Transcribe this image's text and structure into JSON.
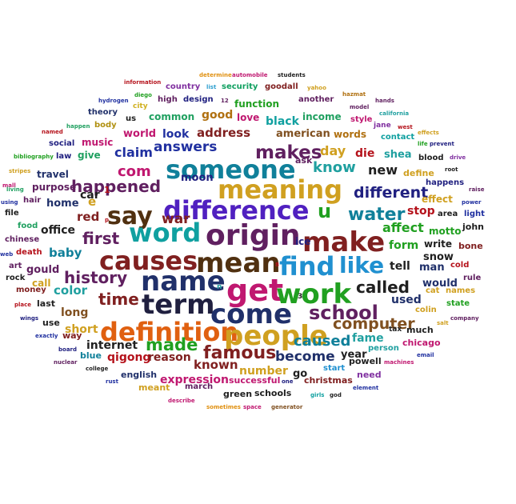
{
  "words": [
    {
      "text": "information",
      "color": "#b5121b"
    },
    {
      "text": "determine",
      "color": "#e09010"
    },
    {
      "text": "automobile",
      "color": "#c01870"
    },
    {
      "text": "students",
      "color": "#202020"
    },
    {
      "text": "diego",
      "color": "#20a020"
    },
    {
      "text": "city",
      "color": "#d0b020"
    },
    {
      "text": "country",
      "color": "#8030a0"
    },
    {
      "text": "list",
      "color": "#30a0d0"
    },
    {
      "text": "security",
      "color": "#10a060"
    },
    {
      "text": "goodall",
      "color": "#802020"
    },
    {
      "text": "yahoo",
      "color": "#d0a020"
    },
    {
      "text": "hydrogen",
      "color": "#2030a0"
    },
    {
      "text": "high",
      "color": "#602060"
    },
    {
      "text": "design",
      "color": "#202080"
    },
    {
      "text": "12",
      "color": "#602060"
    },
    {
      "text": "function",
      "color": "#20a020"
    },
    {
      "text": "another",
      "color": "#602060"
    },
    {
      "text": "hazmat",
      "color": "#b07010"
    },
    {
      "text": "hands",
      "color": "#602060"
    },
    {
      "text": "theory",
      "color": "#20306a"
    },
    {
      "text": "model",
      "color": "#602060"
    },
    {
      "text": "california",
      "color": "#20a0a0"
    },
    {
      "text": "us",
      "color": "#202020"
    },
    {
      "text": "common",
      "color": "#20a060"
    },
    {
      "text": "good",
      "color": "#b07010"
    },
    {
      "text": "love",
      "color": "#c01870"
    },
    {
      "text": "black",
      "color": "#10a0a0"
    },
    {
      "text": "income",
      "color": "#20a060"
    },
    {
      "text": "style",
      "color": "#c01870"
    },
    {
      "text": "body",
      "color": "#b09010"
    },
    {
      "text": "jane",
      "color": "#8030a0"
    },
    {
      "text": "happen",
      "color": "#20a060"
    },
    {
      "text": "west",
      "color": "#b5121b"
    },
    {
      "text": "named",
      "color": "#b5121b"
    },
    {
      "text": "world",
      "color": "#c01870"
    },
    {
      "text": "look",
      "color": "#2030a0"
    },
    {
      "text": "address",
      "color": "#802020"
    },
    {
      "text": "american",
      "color": "#805020"
    },
    {
      "text": "words",
      "color": "#b07010"
    },
    {
      "text": "music",
      "color": "#c01870"
    },
    {
      "text": "social",
      "color": "#202080"
    },
    {
      "text": "contact",
      "color": "#10a0a0"
    },
    {
      "text": "effects",
      "color": "#d0a020"
    },
    {
      "text": "life",
      "color": "#20a020"
    },
    {
      "text": "prevent",
      "color": "#202080"
    },
    {
      "text": "answers",
      "color": "#2030a0"
    },
    {
      "text": "makes",
      "color": "#602060"
    },
    {
      "text": "claim",
      "color": "#2030a0"
    },
    {
      "text": "day",
      "color": "#d0a020"
    },
    {
      "text": "die",
      "color": "#b5121b"
    },
    {
      "text": "bibliography",
      "color": "#20a020"
    },
    {
      "text": "law",
      "color": "#202080"
    },
    {
      "text": "give",
      "color": "#20a060"
    },
    {
      "text": "ask",
      "color": "#602060"
    },
    {
      "text": "shea",
      "color": "#20a0a0"
    },
    {
      "text": "blood",
      "color": "#202020"
    },
    {
      "text": "drive",
      "color": "#8030a0"
    },
    {
      "text": "someone",
      "color": "#10809a"
    },
    {
      "text": "com",
      "color": "#c01870"
    },
    {
      "text": "know",
      "color": "#20a0a0"
    },
    {
      "text": "stripes",
      "color": "#d0a020"
    },
    {
      "text": "travel",
      "color": "#20306a"
    },
    {
      "text": "new",
      "color": "#202020"
    },
    {
      "text": "define",
      "color": "#d0a020"
    },
    {
      "text": "root",
      "color": "#202020"
    },
    {
      "text": "happened",
      "color": "#602060"
    },
    {
      "text": "meaning",
      "color": "#d0a020"
    },
    {
      "text": "mall",
      "color": "#c01870"
    },
    {
      "text": "purpose",
      "color": "#602060"
    },
    {
      "text": "moon",
      "color": "#202080"
    },
    {
      "text": "happens",
      "color": "#202080"
    },
    {
      "text": "living",
      "color": "#20a060"
    },
    {
      "text": "car",
      "color": "#202020"
    },
    {
      "text": "1",
      "color": "#b5121b"
    },
    {
      "text": "different",
      "color": "#202080"
    },
    {
      "text": "raise",
      "color": "#602060"
    },
    {
      "text": "e",
      "color": "#d0a020"
    },
    {
      "text": "difference",
      "color": "#5020c0"
    },
    {
      "text": "u",
      "color": "#20a020"
    },
    {
      "text": "effect",
      "color": "#d0a020"
    },
    {
      "text": "using",
      "color": "#2030a0"
    },
    {
      "text": "hair",
      "color": "#602060"
    },
    {
      "text": "home",
      "color": "#20306a"
    },
    {
      "text": "say",
      "color": "#503010"
    },
    {
      "text": "water",
      "color": "#10809a"
    },
    {
      "text": "power",
      "color": "#2030a0"
    },
    {
      "text": "stop",
      "color": "#b5121b"
    },
    {
      "text": "area",
      "color": "#202020"
    },
    {
      "text": "file",
      "color": "#202020"
    },
    {
      "text": "red",
      "color": "#802020"
    },
    {
      "text": "light",
      "color": "#2030a0"
    },
    {
      "text": "word",
      "color": "#10a0a0"
    },
    {
      "text": "war",
      "color": "#802020"
    },
    {
      "text": "origin",
      "color": "#602060"
    },
    {
      "text": "food",
      "color": "#20a060"
    },
    {
      "text": "office",
      "color": "#202020"
    },
    {
      "text": "p",
      "color": "#b5121b"
    },
    {
      "text": "make",
      "color": "#802020"
    },
    {
      "text": "affect",
      "color": "#20a020"
    },
    {
      "text": "motto",
      "color": "#20a020"
    },
    {
      "text": "john",
      "color": "#202020"
    },
    {
      "text": "ice",
      "color": "#202080"
    },
    {
      "text": "chinese",
      "color": "#602060"
    },
    {
      "text": "first",
      "color": "#602060"
    },
    {
      "text": "causes",
      "color": "#802020"
    },
    {
      "text": "mean",
      "color": "#503010"
    },
    {
      "text": "find",
      "color": "#2090d0"
    },
    {
      "text": "form",
      "color": "#20a020"
    },
    {
      "text": "write",
      "color": "#202020"
    },
    {
      "text": "bone",
      "color": "#802020"
    },
    {
      "text": "death",
      "color": "#b5121b"
    },
    {
      "text": "baby",
      "color": "#10809a"
    },
    {
      "text": "like",
      "color": "#2090d0"
    },
    {
      "text": "snow",
      "color": "#202020"
    },
    {
      "text": "web",
      "color": "#2030a0"
    },
    {
      "text": "get",
      "color": "#c01870"
    },
    {
      "text": "art",
      "color": "#602060"
    },
    {
      "text": "gould",
      "color": "#602060"
    },
    {
      "text": "name",
      "color": "#20306a"
    },
    {
      "text": "tell",
      "color": "#202020"
    },
    {
      "text": "man",
      "color": "#20306a"
    },
    {
      "text": "cold",
      "color": "#b5121b"
    },
    {
      "text": "rock",
      "color": "#202020"
    },
    {
      "text": "history",
      "color": "#602060"
    },
    {
      "text": "8",
      "color": "#b5121b"
    },
    {
      "text": "work",
      "color": "#20a020"
    },
    {
      "text": "called",
      "color": "#202020"
    },
    {
      "text": "rule",
      "color": "#602060"
    },
    {
      "text": "call",
      "color": "#d0a020"
    },
    {
      "text": "would",
      "color": "#20306a"
    },
    {
      "text": "money",
      "color": "#802020"
    },
    {
      "text": "color",
      "color": "#20a0a0"
    },
    {
      "text": "term",
      "color": "#202040"
    },
    {
      "text": "n",
      "color": "#20a0a0"
    },
    {
      "text": "cat",
      "color": "#d0a020"
    },
    {
      "text": "names",
      "color": "#d0a020"
    },
    {
      "text": "time",
      "color": "#802020"
    },
    {
      "text": "come",
      "color": "#20306a"
    },
    {
      "text": "3",
      "color": "#202020"
    },
    {
      "text": "used",
      "color": "#20306a"
    },
    {
      "text": "place",
      "color": "#b5121b"
    },
    {
      "text": "last",
      "color": "#202020"
    },
    {
      "text": "school",
      "color": "#602060"
    },
    {
      "text": "state",
      "color": "#20a020"
    },
    {
      "text": "long",
      "color": "#805020"
    },
    {
      "text": "wings",
      "color": "#202080"
    },
    {
      "text": "colin",
      "color": "#d0a020"
    },
    {
      "text": "use",
      "color": "#202020"
    },
    {
      "text": "computer",
      "color": "#805020"
    },
    {
      "text": "company",
      "color": "#602060"
    },
    {
      "text": "definition",
      "color": "#e06010"
    },
    {
      "text": "people",
      "color": "#d0a020"
    },
    {
      "text": "tax",
      "color": "#202020"
    },
    {
      "text": "short",
      "color": "#d0a020"
    },
    {
      "text": "much",
      "color": "#202020"
    },
    {
      "text": "salt",
      "color": "#d0a020"
    },
    {
      "text": "exactly",
      "color": "#2030a0"
    },
    {
      "text": "way",
      "color": "#802020"
    },
    {
      "text": "made",
      "color": "#20a020"
    },
    {
      "text": "caused",
      "color": "#10809a"
    },
    {
      "text": "fame",
      "color": "#20a0a0"
    },
    {
      "text": "chicago",
      "color": "#c01870"
    },
    {
      "text": "internet",
      "color": "#202020"
    },
    {
      "text": "famous",
      "color": "#802020"
    },
    {
      "text": "person",
      "color": "#20a0a0"
    },
    {
      "text": "board",
      "color": "#202080"
    },
    {
      "text": "email",
      "color": "#2030a0"
    },
    {
      "text": "blue",
      "color": "#10809a"
    },
    {
      "text": "qigong",
      "color": "#b5121b"
    },
    {
      "text": "become",
      "color": "#20306a"
    },
    {
      "text": "year",
      "color": "#202020"
    },
    {
      "text": "nuclear",
      "color": "#602060"
    },
    {
      "text": "reason",
      "color": "#802020"
    },
    {
      "text": "known",
      "color": "#802020"
    },
    {
      "text": "powell",
      "color": "#202020"
    },
    {
      "text": "machines",
      "color": "#c01870"
    },
    {
      "text": "college",
      "color": "#202020"
    },
    {
      "text": "number",
      "color": "#d0a020"
    },
    {
      "text": "go",
      "color": "#202020"
    },
    {
      "text": "start",
      "color": "#2090d0"
    },
    {
      "text": "english",
      "color": "#20306a"
    },
    {
      "text": "rust",
      "color": "#2030a0"
    },
    {
      "text": "expression",
      "color": "#c01870"
    },
    {
      "text": "need",
      "color": "#8030a0"
    },
    {
      "text": "meant",
      "color": "#d0a020"
    },
    {
      "text": "march",
      "color": "#602060"
    },
    {
      "text": "successful",
      "color": "#c01870"
    },
    {
      "text": "christmas",
      "color": "#802020"
    },
    {
      "text": "one",
      "color": "#202080"
    },
    {
      "text": "element",
      "color": "#2030a0"
    },
    {
      "text": "green",
      "color": "#202020"
    },
    {
      "text": "schools",
      "color": "#202020"
    },
    {
      "text": "girls",
      "color": "#10a0a0"
    },
    {
      "text": "god",
      "color": "#202020"
    },
    {
      "text": "describe",
      "color": "#c01870"
    },
    {
      "text": "sometimes",
      "color": "#e09010"
    },
    {
      "text": "space",
      "color": "#c01870"
    },
    {
      "text": "generator",
      "color": "#805020"
    }
  ]
}
